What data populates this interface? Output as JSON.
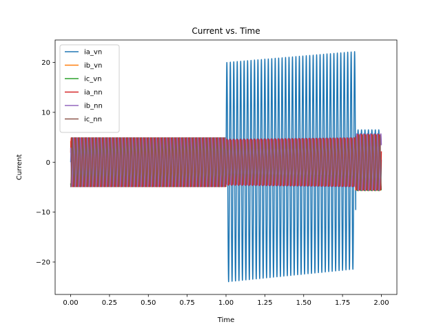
{
  "chart_data": {
    "type": "line",
    "title": "Current vs. Time",
    "xlabel": "Time",
    "ylabel": "Current",
    "xlim": [
      -0.1,
      2.1
    ],
    "ylim": [
      -26.5,
      24.5
    ],
    "xticks": [
      "0.00",
      "0.25",
      "0.50",
      "0.75",
      "1.00",
      "1.25",
      "1.50",
      "1.75",
      "2.00"
    ],
    "yticks": [
      "−20",
      "−10",
      "0",
      "10",
      "20"
    ],
    "legend_position": "top-left",
    "grid": false,
    "cycles_per_unit": 45,
    "series": [
      {
        "name": "ia_vn",
        "color": "#1f77b4",
        "segments": [
          {
            "t0": 0.0,
            "t1": 1.0,
            "amp": [
              4.9,
              4.9
            ],
            "offset": [
              0,
              0
            ],
            "phase": 0
          },
          {
            "t0": 1.0,
            "t1": 1.835,
            "amp": [
              22.0,
              21.8
            ],
            "offset": [
              -2.0,
              0.4
            ],
            "phase": 0
          },
          {
            "t0": 1.835,
            "t1": 2.0,
            "amp": [
              6.0,
              6.0
            ],
            "offset": [
              0.5,
              0.5
            ],
            "phase": 0
          }
        ]
      },
      {
        "name": "ib_vn",
        "color": "#ff7f0e",
        "segments": [
          {
            "t0": 0.0,
            "t1": 1.0,
            "amp": [
              4.9,
              4.9
            ],
            "offset": [
              0,
              0
            ],
            "phase": 2.094
          },
          {
            "t0": 1.0,
            "t1": 1.835,
            "amp": [
              0.5,
              0.5
            ],
            "offset": [
              -3.3,
              -3.8
            ],
            "phase": 2.094
          },
          {
            "t0": 1.835,
            "t1": 2.0,
            "amp": [
              0.4,
              0.4
            ],
            "offset": [
              -5.3,
              -5.3
            ],
            "phase": 2.094
          }
        ]
      },
      {
        "name": "ic_vn",
        "color": "#2ca02c",
        "segments": [
          {
            "t0": 0.0,
            "t1": 1.0,
            "amp": [
              4.9,
              4.9
            ],
            "offset": [
              0,
              0
            ],
            "phase": 4.189
          },
          {
            "t0": 1.0,
            "t1": 1.835,
            "amp": [
              0.8,
              0.8
            ],
            "offset": [
              -3.0,
              -3.6
            ],
            "phase": 4.189
          },
          {
            "t0": 1.835,
            "t1": 2.0,
            "amp": [
              0.5,
              0.5
            ],
            "offset": [
              -5.2,
              -5.2
            ],
            "phase": 4.189
          }
        ]
      },
      {
        "name": "ia_nn",
        "color": "#d62728",
        "segments": [
          {
            "t0": 0.0,
            "t1": 1.0,
            "amp": [
              4.9,
              4.9
            ],
            "offset": [
              0,
              0
            ],
            "phase": 0.4
          },
          {
            "t0": 1.0,
            "t1": 1.835,
            "amp": [
              4.6,
              4.9
            ],
            "offset": [
              0,
              0
            ],
            "phase": 0.4
          },
          {
            "t0": 1.835,
            "t1": 2.0,
            "amp": [
              5.6,
              5.6
            ],
            "offset": [
              0,
              0
            ],
            "phase": 0.4
          }
        ]
      },
      {
        "name": "ib_nn",
        "color": "#9467bd",
        "segments": [
          {
            "t0": 0.0,
            "t1": 1.0,
            "amp": [
              4.9,
              4.9
            ],
            "offset": [
              0,
              0
            ],
            "phase": 2.5
          },
          {
            "t0": 1.0,
            "t1": 1.835,
            "amp": [
              4.5,
              4.9
            ],
            "offset": [
              0,
              0
            ],
            "phase": 2.5
          },
          {
            "t0": 1.835,
            "t1": 2.0,
            "amp": [
              5.7,
              5.7
            ],
            "offset": [
              0,
              0
            ],
            "phase": 2.5
          }
        ]
      },
      {
        "name": "ic_nn",
        "color": "#8c564b",
        "segments": [
          {
            "t0": 0.0,
            "t1": 1.0,
            "amp": [
              4.9,
              4.9
            ],
            "offset": [
              0,
              0
            ],
            "phase": 4.6
          },
          {
            "t0": 1.0,
            "t1": 1.835,
            "amp": [
              4.4,
              4.8
            ],
            "offset": [
              0,
              0
            ],
            "phase": 4.6
          },
          {
            "t0": 1.835,
            "t1": 2.0,
            "amp": [
              5.5,
              5.5
            ],
            "offset": [
              0,
              0
            ],
            "phase": 4.6
          }
        ]
      }
    ]
  }
}
